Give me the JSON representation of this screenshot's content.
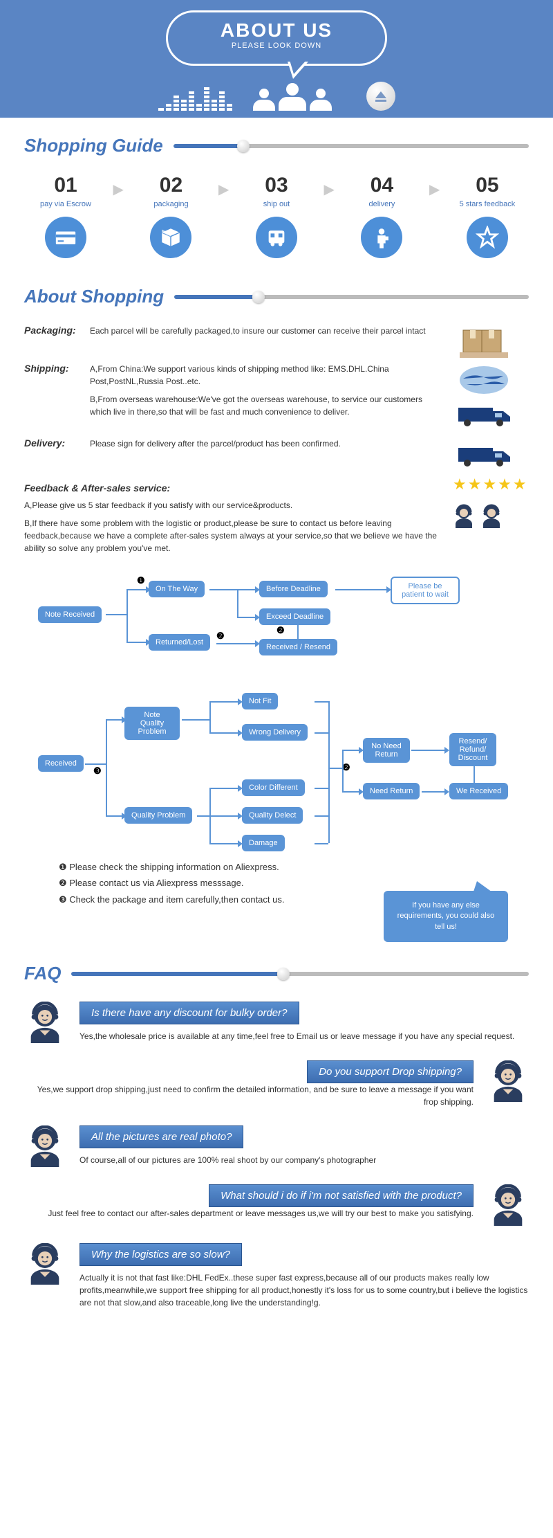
{
  "header": {
    "title": "ABOUT US",
    "subtitle": "PLEASE LOOK DOWN"
  },
  "colors": {
    "primary": "#5a85c4",
    "accent": "#4575ba",
    "node": "#5a94d6",
    "star": "#f5c518",
    "dark_avatar": "#2a3d5f"
  },
  "section1": {
    "title": "Shopping Guide",
    "slider_pos_pct": 18,
    "steps": [
      {
        "num": "01",
        "label": "pay via Escrow",
        "icon": "card"
      },
      {
        "num": "02",
        "label": "packaging",
        "icon": "box"
      },
      {
        "num": "03",
        "label": "ship out",
        "icon": "bus"
      },
      {
        "num": "04",
        "label": "delivery",
        "icon": "person"
      },
      {
        "num": "05",
        "label": "5 stars feedback",
        "icon": "star"
      }
    ]
  },
  "section2": {
    "title": "About Shopping",
    "slider_pos_pct": 22,
    "packaging_label": "Packaging:",
    "packaging_text": "Each parcel will be carefully packaged,to insure our customer can receive their parcel intact",
    "shipping_label": "Shipping:",
    "shipping_a": "A,From China:We support various kinds of shipping method like: EMS.DHL.China Post,PostNL,Russia Post..etc.",
    "shipping_b": "B,From overseas warehouse:We've got the overseas warehouse, to service our customers which live in there,so that will be fast and much convenience to deliver.",
    "delivery_label": "Delivery:",
    "delivery_text": "Please sign for delivery after the parcel/product has been confirmed.",
    "feedback_title": "Feedback & After-sales service:",
    "feedback_a": "A,Please give us 5 star feedback if you satisfy with our service&products.",
    "feedback_b": "B,If there have some problem with the logistic or product,please be sure to contact us before leaving feedback,because we have a complete after-sales system always at your service,so that we believe we have the ability so solve any problem you've met."
  },
  "flowchart1": {
    "nodes": {
      "note_received": "Note Received",
      "on_the_way": "On The Way",
      "returned_lost": "Returned/Lost",
      "before_deadline": "Before Deadline",
      "exceed_deadline": "Exceed Deadline",
      "received_resend": "Received / Resend",
      "patient": "Please be patient to wait"
    }
  },
  "flowchart2": {
    "nodes": {
      "received": "Received",
      "note_quality": "Note Quality Problem",
      "quality_problem": "Quality Problem",
      "not_fit": "Not Fit",
      "wrong_delivery": "Wrong Delivery",
      "color_different": "Color Different",
      "quality_defect": "Quality Delect",
      "damage": "Damage",
      "no_need_return": "No Need Return",
      "need_return": "Need Return",
      "resend_refund": "Resend/ Refund/ Discount",
      "we_received": "We Received"
    }
  },
  "instructions": {
    "i1": "❶ Please check the shipping information on Aliexpress.",
    "i2": "❷ Please contact us via Aliexpress messsage.",
    "i3": "❸ Check the package and item carefully,then contact us."
  },
  "callout": "If you have any else requirements, you could also tell us!",
  "section3": {
    "title": "FAQ",
    "slider_pos_pct": 45,
    "items": [
      {
        "q": "Is there have any discount for bulky order?",
        "a": "Yes,the wholesale price is available at any time,feel free to Email us or leave message if you have any special request.",
        "side": "left"
      },
      {
        "q": "Do you support Drop shipping?",
        "a": "Yes,we support drop shipping,just need to confirm the detailed information, and be sure to leave a message if you want frop shipping.",
        "side": "right"
      },
      {
        "q": "All the pictures are real photo?",
        "a": "Of course,all of our pictures are 100% real shoot by our company's photographer",
        "side": "left"
      },
      {
        "q": "What should i do if i'm not satisfied with the product?",
        "a": "Just feel free to contact our after-sales department or leave messages us,we will try our best to make you satisfying.",
        "side": "right"
      },
      {
        "q": "Why the logistics are so slow?",
        "a": "Actually it is not that fast like:DHL FedEx..these super fast express,because all of our products makes really low profits,meanwhile,we support free shipping for all product,honestly it's loss for us to some country,but i believe the logistics are not that slow,and also traceable,long live the understanding!g.",
        "side": "left"
      }
    ]
  }
}
